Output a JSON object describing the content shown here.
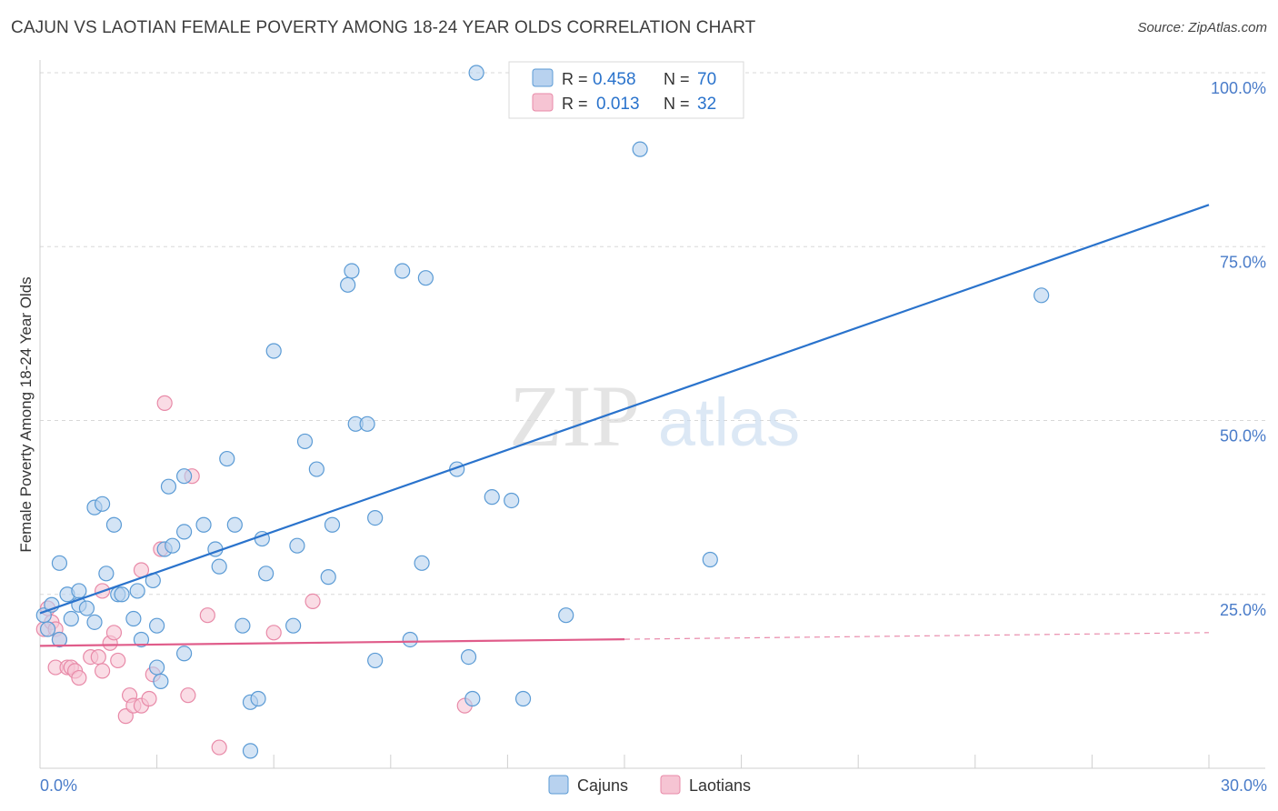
{
  "source": "Source: ZipAtlas.com",
  "watermark": {
    "zip": "ZIP",
    "atlas": "atlas"
  },
  "colors": {
    "blue": "#5b9bd5",
    "blue_fill": "#b8d2ef",
    "blue_line": "#2a73cc",
    "pink": "#e88aa8",
    "pink_fill": "#f6c4d3",
    "pink_line": "#e05c8a",
    "axis_label": "#4a7cc9",
    "grid": "#d8d8d8"
  },
  "legend_top": {
    "rows": [
      {
        "r_label": "R =",
        "r_value": "0.458",
        "n_label": "N =",
        "n_value": "70"
      },
      {
        "r_label": "R =",
        "r_value": "0.013",
        "n_label": "N =",
        "n_value": "32"
      }
    ]
  },
  "legend_bottom": {
    "items": [
      "Cajuns",
      "Laotians"
    ]
  },
  "chart_data": {
    "type": "scatter",
    "title": "CAJUN VS LAOTIAN FEMALE POVERTY AMONG 18-24 YEAR OLDS CORRELATION CHART",
    "xlabel": "",
    "ylabel": "Female Poverty Among 18-24 Year Olds",
    "xlim": [
      0,
      30
    ],
    "ylim": [
      0,
      100
    ],
    "x_tick_labels": [
      "0.0%",
      "30.0%"
    ],
    "y_ticks": [
      25,
      50,
      75,
      100
    ],
    "y_tick_labels": [
      "25.0%",
      "50.0%",
      "75.0%",
      "100.0%"
    ],
    "grid": true,
    "legend": "top-center",
    "series": [
      {
        "name": "Cajuns",
        "R": 0.458,
        "N": 70,
        "trend": {
          "x": [
            0,
            30
          ],
          "y": [
            22.3,
            81
          ]
        },
        "points": [
          [
            0.1,
            22
          ],
          [
            0.2,
            20
          ],
          [
            0.3,
            23.5
          ],
          [
            0.5,
            18.5
          ],
          [
            0.5,
            29.5
          ],
          [
            0.7,
            25
          ],
          [
            0.8,
            21.5
          ],
          [
            1.0,
            25.5
          ],
          [
            1.0,
            23.5
          ],
          [
            1.2,
            23
          ],
          [
            1.4,
            21
          ],
          [
            1.4,
            37.5
          ],
          [
            1.6,
            38
          ],
          [
            1.7,
            28
          ],
          [
            1.9,
            35
          ],
          [
            2.0,
            25
          ],
          [
            2.1,
            25
          ],
          [
            2.4,
            21.5
          ],
          [
            2.5,
            25.5
          ],
          [
            2.6,
            18.5
          ],
          [
            2.9,
            27
          ],
          [
            3.0,
            20.5
          ],
          [
            3.0,
            14.5
          ],
          [
            3.1,
            12.5
          ],
          [
            3.2,
            31.5
          ],
          [
            3.3,
            40.5
          ],
          [
            3.4,
            32
          ],
          [
            3.7,
            16.5
          ],
          [
            3.7,
            34
          ],
          [
            3.7,
            42
          ],
          [
            4.2,
            35
          ],
          [
            4.5,
            31.5
          ],
          [
            4.6,
            29
          ],
          [
            4.8,
            44.5
          ],
          [
            5.0,
            35
          ],
          [
            5.2,
            20.5
          ],
          [
            5.4,
            9.5
          ],
          [
            5.6,
            10
          ],
          [
            5.7,
            33
          ],
          [
            5.8,
            28
          ],
          [
            5.4,
            2.5
          ],
          [
            6.0,
            60
          ],
          [
            6.5,
            20.5
          ],
          [
            6.8,
            47
          ],
          [
            6.6,
            32
          ],
          [
            7.1,
            43
          ],
          [
            7.5,
            35
          ],
          [
            7.4,
            27.5
          ],
          [
            7.9,
            69.5
          ],
          [
            8.0,
            71.5
          ],
          [
            8.1,
            49.5
          ],
          [
            8.4,
            49.5
          ],
          [
            8.6,
            36
          ],
          [
            8.6,
            15.5
          ],
          [
            9.3,
            71.5
          ],
          [
            9.5,
            18.5
          ],
          [
            9.8,
            29.5
          ],
          [
            9.9,
            70.5
          ],
          [
            10.7,
            43
          ],
          [
            11.0,
            16
          ],
          [
            11.1,
            10
          ],
          [
            11.2,
            100
          ],
          [
            11.6,
            39
          ],
          [
            12.1,
            38.5
          ],
          [
            12.4,
            10
          ],
          [
            13.5,
            22
          ],
          [
            15.4,
            89
          ],
          [
            17.2,
            30
          ],
          [
            25.7,
            68
          ]
        ]
      },
      {
        "name": "Laotians",
        "R": 0.013,
        "N": 32,
        "trend": {
          "x": [
            0,
            30
          ],
          "y": [
            17.6,
            19.5
          ]
        },
        "trend_solid_x_end": 15,
        "points": [
          [
            0.1,
            20
          ],
          [
            0.2,
            23
          ],
          [
            0.3,
            21
          ],
          [
            0.4,
            20
          ],
          [
            0.4,
            14.5
          ],
          [
            0.5,
            18.5
          ],
          [
            0.7,
            14.5
          ],
          [
            0.8,
            14.5
          ],
          [
            0.9,
            14
          ],
          [
            1.0,
            13
          ],
          [
            1.3,
            16
          ],
          [
            1.5,
            16
          ],
          [
            1.6,
            14
          ],
          [
            1.6,
            25.5
          ],
          [
            1.8,
            18
          ],
          [
            1.9,
            19.5
          ],
          [
            2.0,
            15.5
          ],
          [
            2.2,
            7.5
          ],
          [
            2.3,
            10.5
          ],
          [
            2.4,
            9
          ],
          [
            2.6,
            9
          ],
          [
            2.6,
            28.5
          ],
          [
            2.8,
            10
          ],
          [
            2.9,
            13.5
          ],
          [
            3.1,
            31.5
          ],
          [
            3.2,
            52.5
          ],
          [
            3.8,
            10.5
          ],
          [
            3.9,
            42
          ],
          [
            4.3,
            22
          ],
          [
            4.6,
            3
          ],
          [
            6.0,
            19.5
          ],
          [
            7.0,
            24
          ],
          [
            10.9,
            9
          ]
        ]
      }
    ]
  }
}
